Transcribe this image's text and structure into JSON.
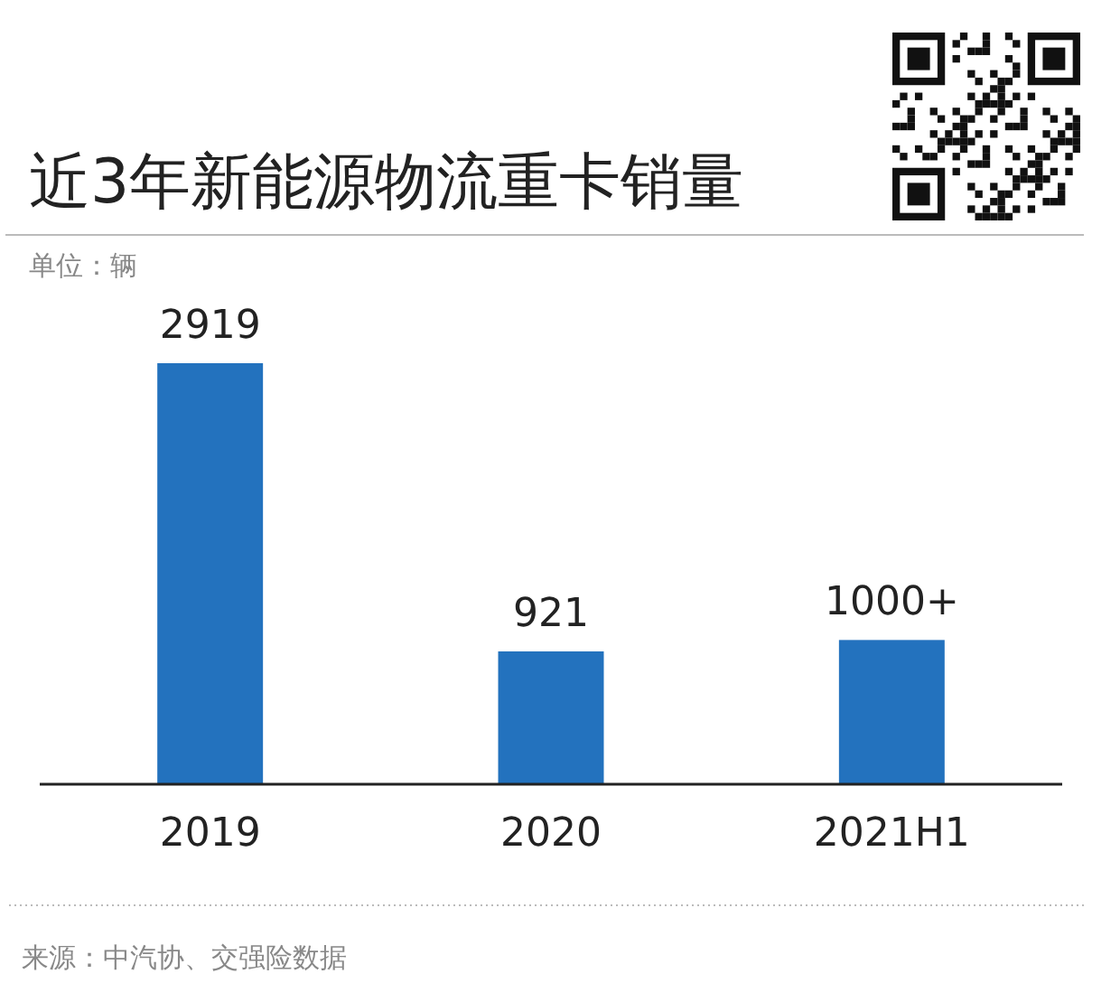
{
  "chart_data": {
    "type": "bar",
    "title": "近3年新能源物流重卡销量",
    "subtitle": "单位：辆",
    "categories": [
      "2019",
      "2020",
      "2021H1"
    ],
    "values": [
      2919,
      921,
      1000
    ],
    "value_labels": [
      "2919",
      "921",
      "1000+"
    ],
    "color": "#2372be",
    "annotations": [
      "来源：中汽协、交强险数据"
    ]
  }
}
